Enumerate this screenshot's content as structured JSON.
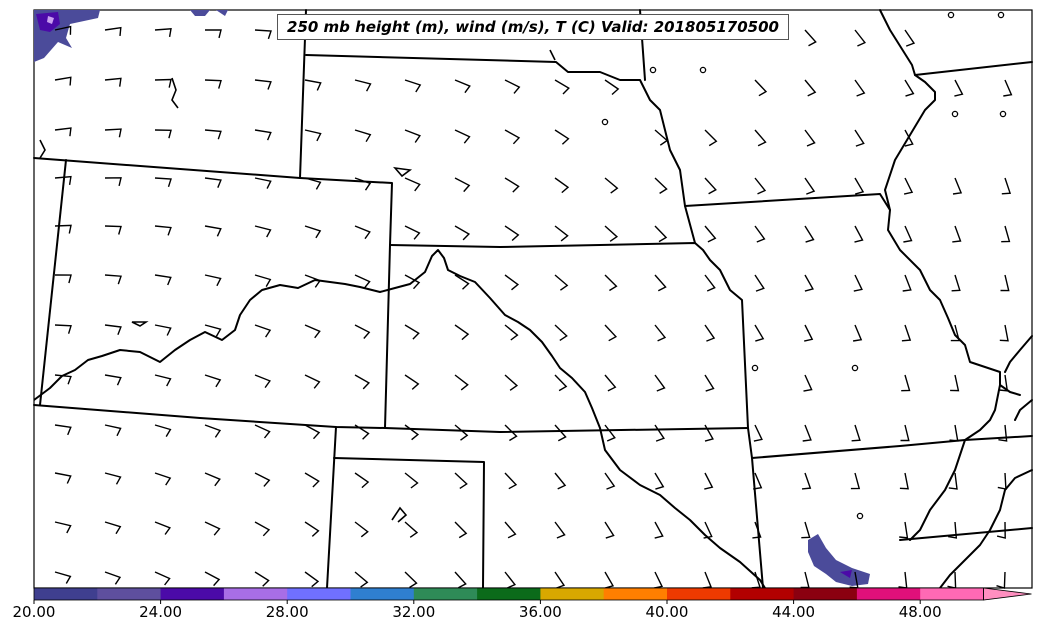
{
  "title": "250 mb height (m), wind (m/s), T (C) Valid: 201805170500",
  "colorbar": {
    "tick_labels": [
      "20.00",
      "24.00",
      "28.00",
      "32.00",
      "36.00",
      "40.00",
      "44.00",
      "48.00"
    ],
    "colors": [
      "#3f3f8f",
      "#5e4f9e",
      "#4b0aa8",
      "#a86ee6",
      "#7070ff",
      "#2f7fd0",
      "#2e8b57",
      "#0b6b1a",
      "#d8a800",
      "#ff7f00",
      "#ee3a00",
      "#b20000",
      "#8b0010",
      "#e0107a",
      "#ff69b4"
    ],
    "extend_color": "#ff8fc0"
  },
  "map": {
    "background": "#ffffff",
    "shading_color": "#4b4b9a",
    "shading_highlight": "#8a2be2"
  }
}
